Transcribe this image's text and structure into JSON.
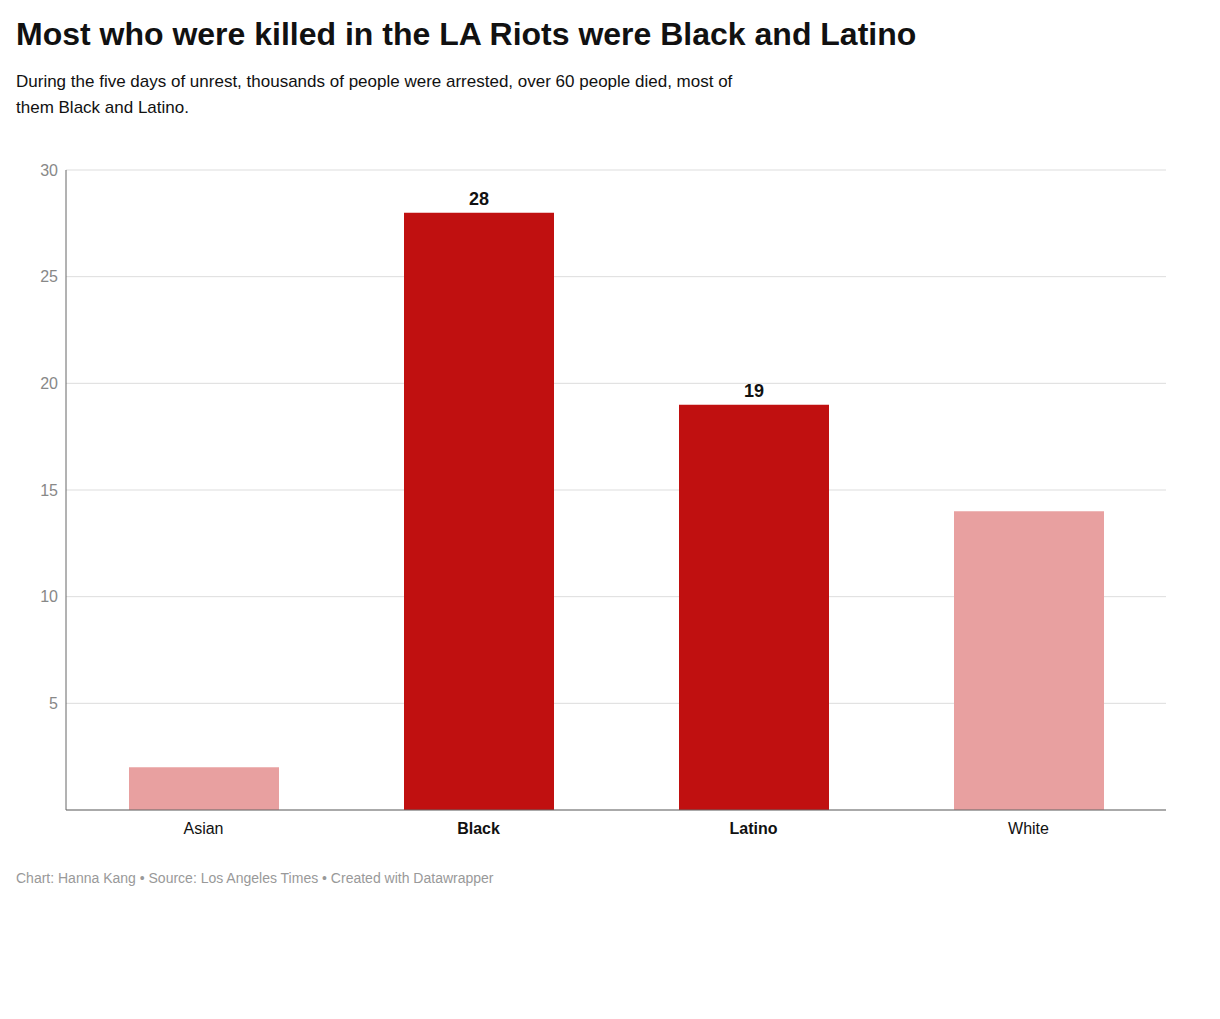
{
  "chart_data": {
    "type": "bar",
    "title": "Most who were killed in the LA Riots were Black and Latino",
    "subtitle": "During the five days of unrest, thousands of people were arrested, over 60 people died, most of\nthem Black and Latino.",
    "footer": "Chart: Hanna Kang • Source: Los Angeles Times • Created with Datawrapper",
    "categories": [
      "Asian",
      "Black",
      "Latino",
      "White"
    ],
    "values": [
      2,
      28,
      19,
      14
    ],
    "colors": [
      "#e8a0a0",
      "#c01010",
      "#c01010",
      "#e8a0a0"
    ],
    "data_labels": true,
    "value_labels": [
      null,
      "28",
      "19",
      null
    ],
    "ylim": [
      0,
      30
    ],
    "yticks": [
      5,
      10,
      15,
      20,
      25,
      30
    ],
    "grid": true
  }
}
